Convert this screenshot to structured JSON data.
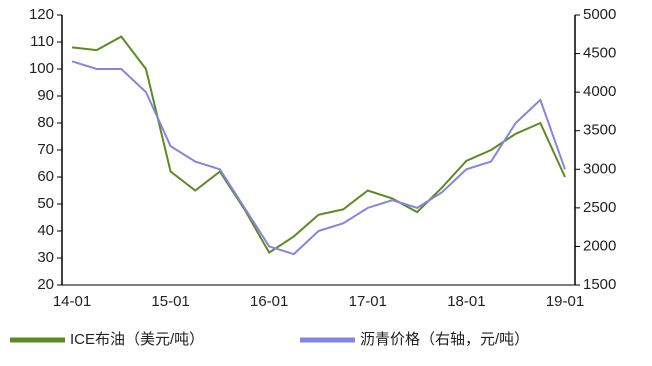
{
  "chart_data": {
    "type": "line",
    "categories": [
      "14-01",
      null,
      null,
      null,
      "15-01",
      null,
      null,
      null,
      "16-01",
      null,
      null,
      null,
      "17-01",
      null,
      null,
      null,
      "18-01",
      null,
      null,
      null,
      "19-01"
    ],
    "series": [
      {
        "name": "ICE布油（美元/吨）",
        "color": "#5b8c1f",
        "axis": "y",
        "values": [
          108,
          107,
          112,
          100,
          62,
          55,
          62,
          48,
          32,
          38,
          46,
          48,
          55,
          52,
          47,
          56,
          66,
          70,
          76,
          80,
          60
        ]
      },
      {
        "name": "沥青价格（右轴，元/吨）",
        "color": "#8585e0",
        "axis": "y2",
        "values": [
          4400,
          4300,
          4300,
          4000,
          3300,
          3100,
          3000,
          2500,
          2000,
          1900,
          2200,
          2300,
          2500,
          2600,
          2500,
          2700,
          3000,
          3100,
          3600,
          3900,
          3000
        ]
      }
    ],
    "ylim": [
      20,
      120
    ],
    "yticks": [
      20,
      30,
      40,
      50,
      60,
      70,
      80,
      90,
      100,
      110,
      120
    ],
    "y2lim": [
      1500,
      5000
    ],
    "y2ticks": [
      1500,
      2000,
      2500,
      3000,
      3500,
      4000,
      4500,
      5000
    ]
  }
}
